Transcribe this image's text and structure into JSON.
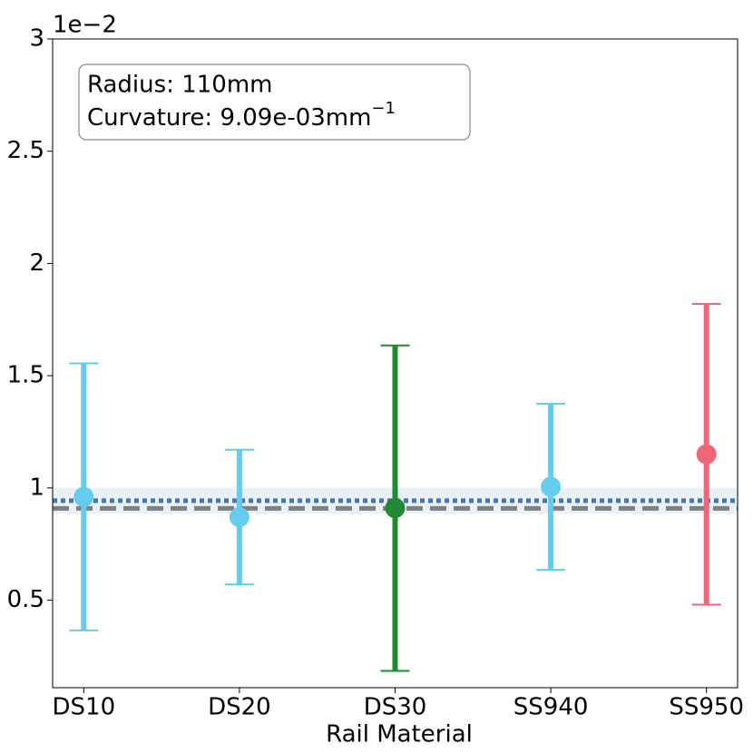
{
  "chart_data": {
    "type": "errorbar",
    "x_label": "Rail Material",
    "y_offset_label": "1e−2",
    "annotation": {
      "line1": "Radius: 110mm",
      "line2": "Curvature: 9.09e-03mm",
      "superscript": "−1"
    },
    "categories": [
      "DS10",
      "DS20",
      "DS30",
      "SS940",
      "SS950"
    ],
    "values": [
      0.96,
      0.87,
      0.91,
      1.005,
      1.15
    ],
    "errors": [
      0.595,
      0.3,
      0.725,
      0.37,
      0.67
    ],
    "colors": [
      "#66ccee",
      "#66ccee",
      "#228833",
      "#66ccee",
      "#ee6677"
    ],
    "reference_lines": [
      {
        "value": 0.943,
        "color": "#4477aa",
        "style": "dotted"
      },
      {
        "value": 0.909,
        "color": "#808080",
        "style": "dashed"
      }
    ],
    "band": {
      "range": [
        0.886,
        1.0
      ],
      "color": "#dce7f0"
    },
    "ylim": [
      0.11,
      3.0
    ],
    "yticks": [
      0.5,
      1.0,
      1.5,
      2.0,
      2.5,
      3.0
    ]
  }
}
